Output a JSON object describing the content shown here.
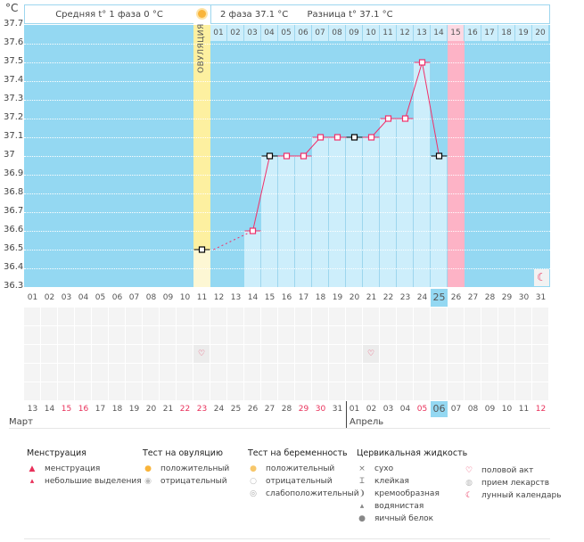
{
  "unit": "°C",
  "header": {
    "phase1": "Средняя t° 1 фаза 0 °C",
    "phase2": "2 фаза 37.1 °C",
    "diff": "Разница t° 37.1 °C"
  },
  "ovulation_label": "ОВУЛЯЦИЯ",
  "colors": {
    "bg": "#94d8f2",
    "bar": "#cdeefb",
    "ovulation": "#fdf0a0",
    "period": "#fdb3c6",
    "line": "#f0306a"
  },
  "chart_data": {
    "type": "line",
    "ylabel": "°C",
    "ylim": [
      36.3,
      37.7
    ],
    "yticks": [
      "37.7",
      "37.6",
      "37.5",
      "37.4",
      "37.3",
      "37.2",
      "37.1",
      "37",
      "36.9",
      "36.8",
      "36.7",
      "36.6",
      "36.5",
      "36.4",
      "36.3"
    ],
    "cycle_days": [
      "01",
      "02",
      "03",
      "04",
      "05",
      "06",
      "07",
      "08",
      "09",
      "10",
      "11",
      "12",
      "13",
      "14",
      "15",
      "16",
      "17",
      "18",
      "19",
      "20",
      "21",
      "22",
      "23",
      "24",
      "25",
      "26",
      "27",
      "28",
      "29",
      "30",
      "31"
    ],
    "points": [
      {
        "day": 11,
        "t": 36.5,
        "mark": "black"
      },
      {
        "day": 14,
        "t": 36.6,
        "mark": "pink"
      },
      {
        "day": 15,
        "t": 37.0,
        "mark": "black"
      },
      {
        "day": 16,
        "t": 37.0,
        "mark": "pink"
      },
      {
        "day": 17,
        "t": 37.0,
        "mark": "pink"
      },
      {
        "day": 18,
        "t": 37.1,
        "mark": "pink"
      },
      {
        "day": 19,
        "t": 37.1,
        "mark": "pink"
      },
      {
        "day": 20,
        "t": 37.1,
        "mark": "black"
      },
      {
        "day": 21,
        "t": 37.1,
        "mark": "pink"
      },
      {
        "day": 22,
        "t": 37.2,
        "mark": "pink"
      },
      {
        "day": 23,
        "t": 37.2,
        "mark": "pink"
      },
      {
        "day": 24,
        "t": 37.5,
        "mark": "pink"
      },
      {
        "day": 25,
        "t": 37.0,
        "mark": "black"
      }
    ],
    "ovulation_day": 11,
    "period_day": 26,
    "current_day": "25"
  },
  "post_ovulation_days": [
    "01",
    "02",
    "03",
    "04",
    "05",
    "06",
    "07",
    "08",
    "09",
    "10",
    "11",
    "12",
    "13",
    "14",
    "15",
    "16",
    "17",
    "18",
    "19",
    "20"
  ],
  "calendar": {
    "dates": [
      "13",
      "14",
      "15",
      "16",
      "17",
      "18",
      "19",
      "20",
      "21",
      "22",
      "23",
      "24",
      "25",
      "26",
      "27",
      "28",
      "29",
      "30",
      "31",
      "01",
      "02",
      "03",
      "04",
      "05",
      "06",
      "07",
      "08",
      "09",
      "10",
      "11",
      "12"
    ],
    "red_indexes": [
      2,
      3,
      9,
      10,
      16,
      17,
      23,
      30
    ],
    "today_index": 24,
    "months": [
      "Март",
      "Апрель"
    ]
  },
  "markers": {
    "heart_days": [
      11,
      21
    ],
    "moon_day": 31
  },
  "legend": [
    {
      "title": "Менструация",
      "items": [
        {
          "icon": "menstruation-icon",
          "label": "менструация"
        },
        {
          "icon": "spotting-icon",
          "label": "небольшие выделения"
        }
      ]
    },
    {
      "title": "Тест на овуляцию",
      "items": [
        {
          "icon": "positive-ovulation-icon",
          "label": "положительный"
        },
        {
          "icon": "negative-ovulation-icon",
          "label": "отрицательный"
        }
      ]
    },
    {
      "title": "Тест на беременность",
      "items": [
        {
          "icon": "positive-pregnancy-icon",
          "label": "положительный"
        },
        {
          "icon": "negative-pregnancy-icon",
          "label": "отрицательный"
        },
        {
          "icon": "weak-pregnancy-icon",
          "label": "слабоположительный"
        }
      ]
    },
    {
      "title": "Цервикальная жидкость",
      "items": [
        {
          "icon": "dry-icon",
          "label": "сухо"
        },
        {
          "icon": "sticky-icon",
          "label": "клейкая"
        },
        {
          "icon": "creamy-icon",
          "label": "кремообразная"
        },
        {
          "icon": "watery-icon",
          "label": "водянистая"
        },
        {
          "icon": "eggwhite-icon",
          "label": "яичный белок"
        }
      ]
    },
    {
      "title": "",
      "items": [
        {
          "icon": "heart-icon",
          "label": "половой акт"
        },
        {
          "icon": "pill-icon",
          "label": "прием лекарств"
        },
        {
          "icon": "moon-icon",
          "label": "лунный календарь"
        }
      ]
    }
  ]
}
